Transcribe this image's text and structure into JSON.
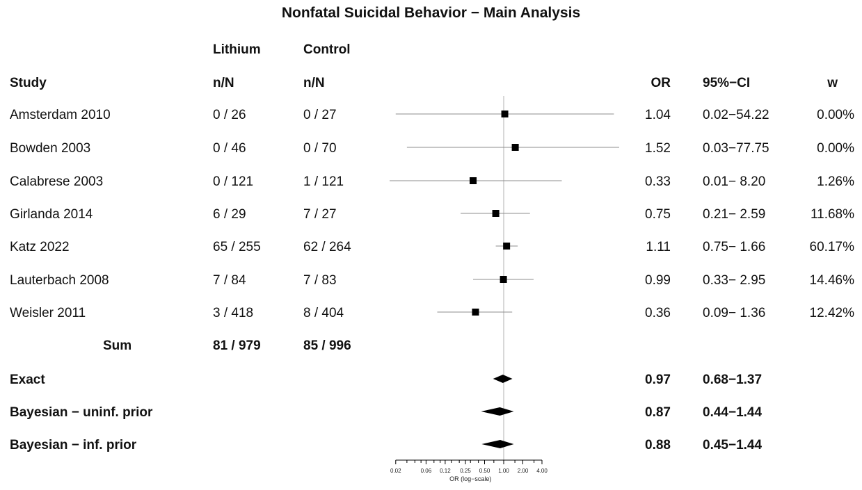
{
  "chart_data": {
    "type": "forest",
    "title": "Nonfatal Suicidal Behavior −  Main Analysis",
    "group_headers": {
      "treatment": "Lithium",
      "control": "Control"
    },
    "column_headers": {
      "study": "Study",
      "treatment_nN": "n/N",
      "control_nN": "n/N",
      "or": "OR",
      "ci": "95%−CI",
      "weight": "w"
    },
    "studies": [
      {
        "name": "Amsterdam 2010",
        "treatment": "0 / 26",
        "control": "0 / 27",
        "or_text": "1.04",
        "ci_text": "0.02−54.22",
        "w_text": "0.00%",
        "or": 1.04,
        "lo": 0.02,
        "hi": 54.22,
        "w": 0.0
      },
      {
        "name": "Bowden 2003",
        "treatment": "0 / 46",
        "control": "0 / 70",
        "or_text": "1.52",
        "ci_text": "0.03−77.75",
        "w_text": "0.00%",
        "or": 1.52,
        "lo": 0.03,
        "hi": 77.75,
        "w": 0.0
      },
      {
        "name": "Calabrese 2003",
        "treatment": "0 / 121",
        "control": "1 / 121",
        "or_text": "0.33",
        "ci_text": "0.01− 8.20",
        "w_text": "1.26%",
        "or": 0.33,
        "lo": 0.01,
        "hi": 8.2,
        "w": 1.26
      },
      {
        "name": "Girlanda 2014",
        "treatment": "6 / 29",
        "control": "7 / 27",
        "or_text": "0.75",
        "ci_text": "0.21− 2.59",
        "w_text": "11.68%",
        "or": 0.75,
        "lo": 0.21,
        "hi": 2.59,
        "w": 11.68
      },
      {
        "name": "Katz 2022",
        "treatment": "65 / 255",
        "control": "62 / 264",
        "or_text": "1.11",
        "ci_text": "0.75− 1.66",
        "w_text": "60.17%",
        "or": 1.11,
        "lo": 0.75,
        "hi": 1.66,
        "w": 60.17
      },
      {
        "name": "Lauterbach 2008",
        "treatment": "7 / 84",
        "control": "7 / 83",
        "or_text": "0.99",
        "ci_text": "0.33− 2.95",
        "w_text": "14.46%",
        "or": 0.99,
        "lo": 0.33,
        "hi": 2.95,
        "w": 14.46
      },
      {
        "name": "Weisler 2011",
        "treatment": "3 / 418",
        "control": "8 / 404",
        "or_text": "0.36",
        "ci_text": "0.09− 1.36",
        "w_text": "12.42%",
        "or": 0.36,
        "lo": 0.09,
        "hi": 1.36,
        "w": 12.42
      }
    ],
    "sum": {
      "label": "Sum",
      "treatment": "81 / 979",
      "control": "85 / 996"
    },
    "pooled": [
      {
        "name": "Exact",
        "or_text": "0.97",
        "ci_text": "0.68−1.37",
        "or": 0.97,
        "lo": 0.68,
        "hi": 1.37
      },
      {
        "name": "Bayesian − uninf. prior",
        "or_text": "0.87",
        "ci_text": "0.44−1.44",
        "or": 0.87,
        "lo": 0.44,
        "hi": 1.44
      },
      {
        "name": "Bayesian − inf. prior",
        "or_text": "0.88",
        "ci_text": "0.45−1.44",
        "or": 0.88,
        "lo": 0.45,
        "hi": 1.44
      }
    ],
    "x_axis": {
      "scale": "log",
      "label": "OR (log−scale)",
      "ticks": [
        0.02,
        0.06,
        0.12,
        0.25,
        0.5,
        1,
        2,
        4
      ],
      "tick_labels": [
        "0.02",
        "0.06",
        "0.12",
        "0.25",
        "0.50",
        "1.00",
        "2.00",
        "4.00"
      ],
      "reference_line": 1
    },
    "colors": {
      "marker": "#000000",
      "ci_line": "#8c8c8c",
      "reference_line": "#b0b0b0",
      "text": "#111111"
    }
  }
}
